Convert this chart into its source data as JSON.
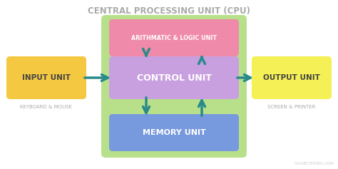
{
  "title": "CENTRAL PROCESSING UNIT (CPU)",
  "title_color": "#aaaaaa",
  "background_color": "#ffffff",
  "cpu_box_color": "#b8e08a",
  "alu_box_color": "#f08aaa",
  "control_box_color": "#c8a0e0",
  "memory_box_color": "#7799dd",
  "input_box_color": "#f5c842",
  "output_box_color": "#f5f055",
  "arrow_color": "#2a8a8a",
  "alu_text": "ARITHMATIC & LOGIC UNIT",
  "control_text": "CONTROL UNIT",
  "memory_text": "MEMORY UNIT",
  "input_text": "INPUT UNIT",
  "input_sub": "KEYBOARD & MOUSE",
  "output_text": "OUTPUT UNIT",
  "output_sub": "SCREEN & PRINTER",
  "watermark": "GIGABYTEXING.COM",
  "box_text_color": "#ffffff",
  "input_output_text_color": "#444444",
  "sub_text_color": "#aaaaaa"
}
